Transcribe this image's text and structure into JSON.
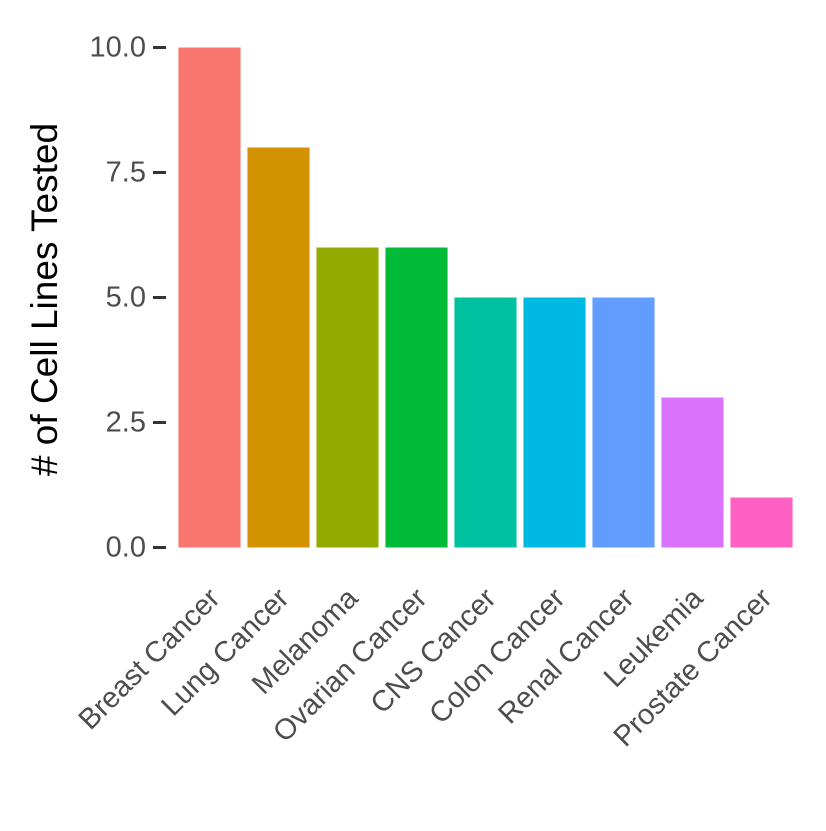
{
  "chart_data": {
    "type": "bar",
    "title": "",
    "xlabel": "",
    "ylabel": "# of Cell Lines Tested",
    "ylim": [
      0,
      10
    ],
    "yticks": [
      0,
      2.5,
      5,
      7.5,
      10
    ],
    "ytick_labels": [
      "0.0",
      "2.5",
      "5.0",
      "7.5",
      "10.0"
    ],
    "categories": [
      "Breast Cancer",
      "Lung Cancer",
      "Melanoma",
      "Ovarian Cancer",
      "CNS Cancer",
      "Colon Cancer",
      "Renal Cancer",
      "Leukemia",
      "Prostate Cancer"
    ],
    "values": [
      10,
      8,
      6,
      6,
      5,
      5,
      5,
      3,
      1
    ],
    "colors": [
      "#F8766D",
      "#D39200",
      "#93AA00",
      "#00BA38",
      "#00C19F",
      "#00B9E3",
      "#619CFF",
      "#DB72FB",
      "#FF61C3"
    ],
    "grid": false,
    "legend": "none"
  }
}
